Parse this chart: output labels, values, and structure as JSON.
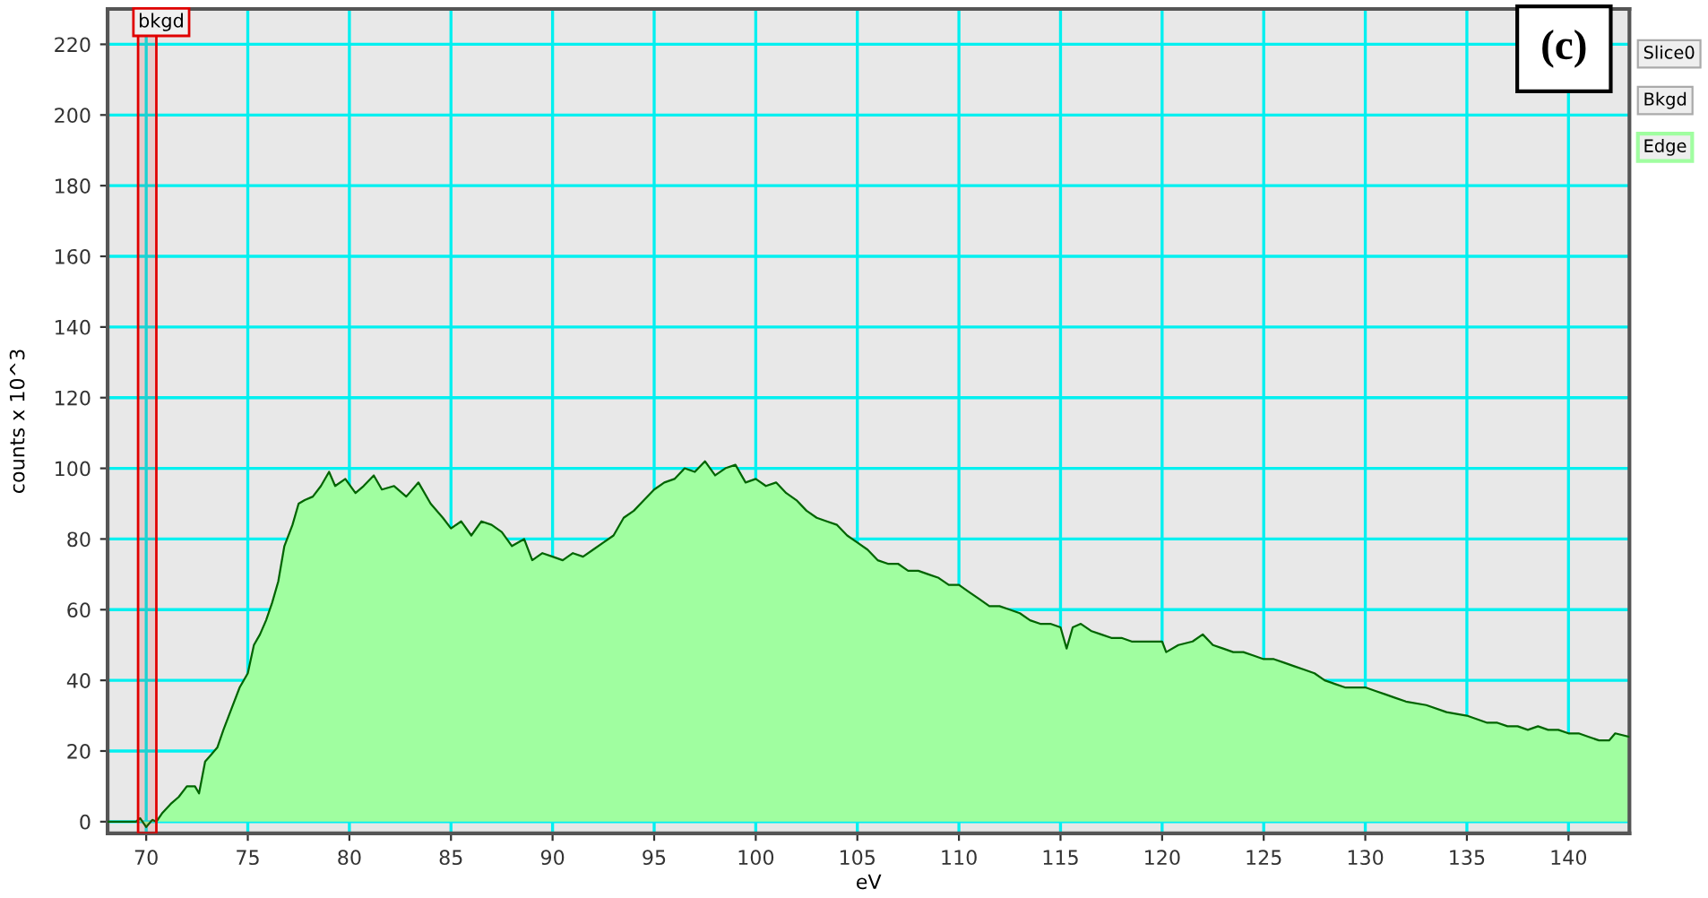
{
  "chart_data": {
    "type": "area",
    "xlabel": "eV",
    "ylabel": "counts x 10^3",
    "xlim": [
      68.1,
      143.0
    ],
    "ylim": [
      -3.3,
      230
    ],
    "xticks": [
      70,
      75,
      80,
      85,
      90,
      95,
      100,
      105,
      110,
      115,
      120,
      125,
      130,
      135,
      140
    ],
    "yticks": [
      0,
      20,
      40,
      60,
      80,
      100,
      120,
      140,
      160,
      180,
      200,
      220
    ],
    "grid": true,
    "annotations": [
      "(c)",
      "Slice0",
      "Bkgd",
      "Edge"
    ],
    "bands": [
      {
        "axis": "x",
        "from": 69.6,
        "to": 70.5,
        "label": "bkgd",
        "color": "#e00000"
      }
    ],
    "series": [
      {
        "color": "#a0fea0",
        "x": [
          68.1,
          69.5,
          69.7,
          70.0,
          70.3,
          70.5,
          70.8,
          71.2,
          71.6,
          72.0,
          72.4,
          72.6,
          72.9,
          73.2,
          73.5,
          73.8,
          74.2,
          74.6,
          75.0,
          75.3,
          75.6,
          75.9,
          76.2,
          76.5,
          76.8,
          77.2,
          77.5,
          77.8,
          78.2,
          78.6,
          79.0,
          79.3,
          79.8,
          80.3,
          80.7,
          81.2,
          81.6,
          82.2,
          82.8,
          83.4,
          84.0,
          84.6,
          85.0,
          85.5,
          86.0,
          86.5,
          87.0,
          87.5,
          88.0,
          88.6,
          89.0,
          89.5,
          90.0,
          90.5,
          91.0,
          91.5,
          92.0,
          92.5,
          93.0,
          93.5,
          94.0,
          94.5,
          95.0,
          95.5,
          96.0,
          96.5,
          97.0,
          97.5,
          98.0,
          98.5,
          99.0,
          99.5,
          100.0,
          100.5,
          101.0,
          101.5,
          102.0,
          102.5,
          103.0,
          103.5,
          104.0,
          104.5,
          105.0,
          105.5,
          106.0,
          106.5,
          107.0,
          107.5,
          108.0,
          108.5,
          109.0,
          109.5,
          110.0,
          110.5,
          111.0,
          111.5,
          112.0,
          112.5,
          113.0,
          113.5,
          114.0,
          114.5,
          115.0,
          115.3,
          115.6,
          116.0,
          116.5,
          117.0,
          117.5,
          118.0,
          118.5,
          119.0,
          120.0,
          120.2,
          120.8,
          121.5,
          122.0,
          122.5,
          123.0,
          123.5,
          124.0,
          124.5,
          125.0,
          125.5,
          126.0,
          126.5,
          127.0,
          127.5,
          128.0,
          128.5,
          129.0,
          129.5,
          130.0,
          130.5,
          131.0,
          131.5,
          132.0,
          133.0,
          134.0,
          135.0,
          135.5,
          136.0,
          136.5,
          137.0,
          137.5,
          138.0,
          138.5,
          139.0,
          139.5,
          140.0,
          140.5,
          141.0,
          141.5,
          142.0,
          142.3,
          143.0
        ],
        "values": [
          0,
          0,
          1,
          -1.5,
          0.5,
          0,
          2.5,
          5,
          7,
          10,
          10,
          8,
          17,
          19,
          21,
          26,
          32,
          38,
          42,
          50,
          53,
          57,
          62,
          68,
          78,
          84,
          90,
          91,
          92,
          95,
          99,
          95,
          97,
          93,
          95,
          98,
          94,
          95,
          92,
          96,
          90,
          86,
          83,
          85,
          81,
          85,
          84,
          82,
          78,
          80,
          74,
          76,
          75,
          74,
          76,
          75,
          77,
          79,
          81,
          86,
          88,
          91,
          94,
          96,
          97,
          100,
          99,
          102,
          98,
          100,
          101,
          96,
          97,
          95,
          96,
          93,
          91,
          88,
          86,
          85,
          84,
          81,
          79,
          77,
          74,
          73,
          73,
          71,
          71,
          70,
          69,
          67,
          67,
          65,
          63,
          61,
          61,
          60,
          59,
          57,
          56,
          56,
          55,
          49,
          55,
          56,
          54,
          53,
          52,
          52,
          51,
          51,
          51,
          48,
          50,
          51,
          53,
          50,
          49,
          48,
          48,
          47,
          46,
          46,
          45,
          44,
          43,
          42,
          40,
          39,
          38,
          38,
          38,
          37,
          36,
          35,
          34,
          33,
          31,
          30,
          29,
          28,
          28,
          27,
          27,
          26,
          27,
          26,
          26,
          25,
          25,
          24,
          23,
          23,
          25,
          24
        ]
      }
    ]
  }
}
